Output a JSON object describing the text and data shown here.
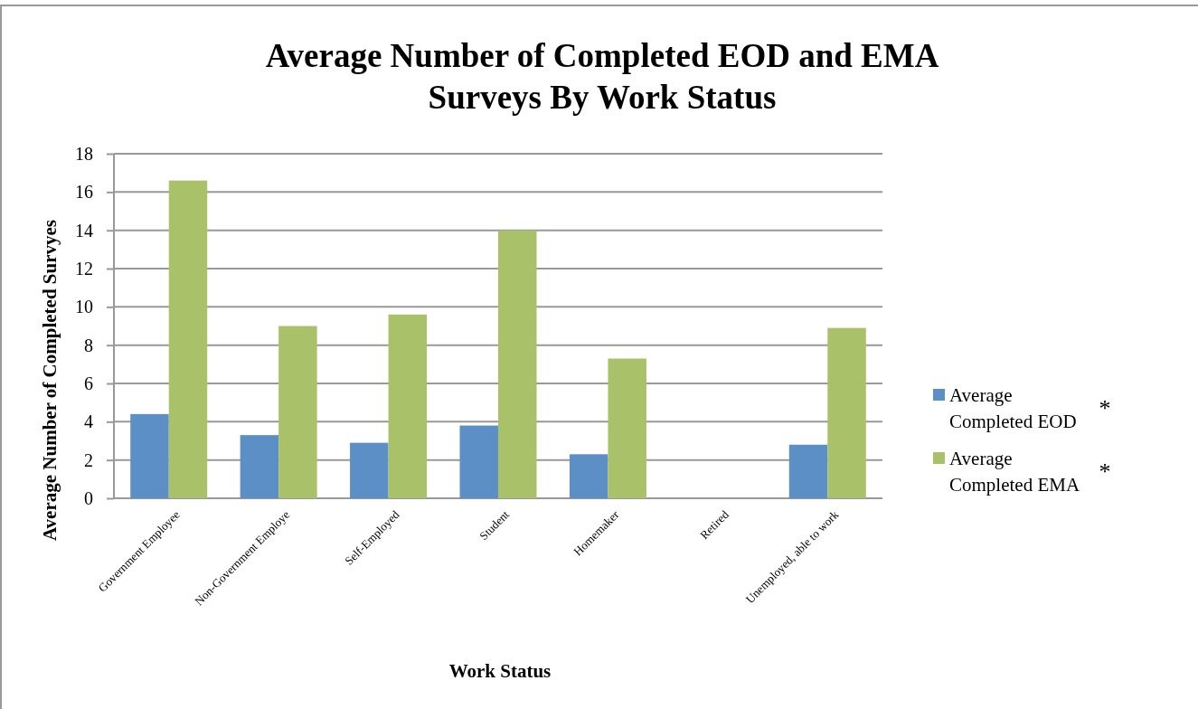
{
  "chart_data": {
    "type": "bar",
    "title": "Average Number of Completed EOD and EMA Surveys By Work Status",
    "xlabel": "Work Status",
    "ylabel": "Average Number of Completed Survyes",
    "categories": [
      "Government Employee",
      "Non-Government Employe",
      "Self-Employed",
      "Student",
      "Homemaker",
      "Retired",
      "Unemployed, able to work"
    ],
    "series": [
      {
        "name": "Average Completed EOD",
        "color": "#5b8fc6",
        "values": [
          4.4,
          3.3,
          2.9,
          3.8,
          2.3,
          0,
          2.8
        ]
      },
      {
        "name": "Average Completed EMA",
        "color": "#a9c26a",
        "values": [
          16.6,
          9.0,
          9.6,
          14.0,
          7.3,
          0,
          8.9
        ]
      }
    ],
    "ylim": [
      0,
      18
    ],
    "yticks": [
      0,
      2,
      4,
      6,
      8,
      10,
      12,
      14,
      16,
      18
    ],
    "grid": "y",
    "legend": "right",
    "annotations": [
      "*",
      "*"
    ]
  }
}
